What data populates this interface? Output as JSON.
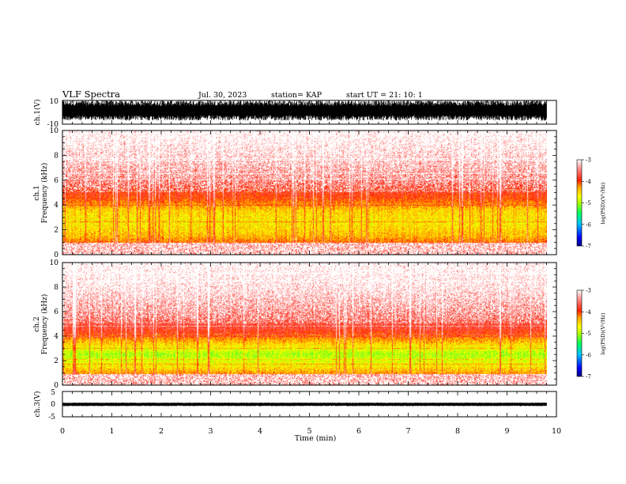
{
  "header": {
    "title": "VLF Spectra",
    "date": "Jul. 30, 2023",
    "station": "station= KAP",
    "start": "start UT = 21: 10: 1"
  },
  "x_axis": {
    "label": "Time (min)",
    "range": [
      0,
      10
    ],
    "ticks": [
      "0",
      "1",
      "2",
      "3",
      "4",
      "5",
      "6",
      "7",
      "8",
      "9",
      "10"
    ]
  },
  "colors": {
    "trace": "#000000",
    "colormap": [
      "#00007f",
      "#0000ff",
      "#00bfff",
      "#00ff60",
      "#7fff00",
      "#ffff00",
      "#ffa500",
      "#ff2000",
      "#ff8080",
      "#ffffff"
    ]
  },
  "chart_data": [
    {
      "type": "line",
      "panel": "ch1-waveform",
      "ylabel": "ch.1(V)",
      "ylim": [
        -10,
        10
      ],
      "yticks": [
        "10",
        "-10"
      ],
      "description_values": {
        "x_range_min": [
          0,
          9.8
        ],
        "amplitude_range_V": [
          -7,
          10
        ],
        "mean_V": 1
      }
    },
    {
      "type": "heatmap",
      "panel": "ch1-spectrogram",
      "ylabel": "ch.1\nFrequency (kHz)",
      "ylabel_lines": [
        "ch.1",
        "Frequency (kHz)"
      ],
      "ylim": [
        0,
        10
      ],
      "yticks": [
        "0",
        "2",
        "4",
        "6",
        "8",
        "10"
      ],
      "x_range_min": [
        0,
        9.8
      ],
      "colorbar": {
        "label": "log(PSD)(V²/Hz)",
        "ticks": [
          "-3",
          "-4",
          "-5",
          "-6",
          "-7"
        ],
        "range": [
          -7,
          -3
        ]
      },
      "band_profile_kHz": [
        {
          "freq": 0.5,
          "logpsd": -3.9
        },
        {
          "freq": 1.5,
          "logpsd": -4.4
        },
        {
          "freq": 2.5,
          "logpsd": -4.6
        },
        {
          "freq": 3.5,
          "logpsd": -4.5
        },
        {
          "freq": 4.5,
          "logpsd": -4.0
        },
        {
          "freq": 6.0,
          "logpsd": -3.6
        },
        {
          "freq": 8.0,
          "logpsd": -3.3
        },
        {
          "freq": 10.0,
          "logpsd": -3.1
        }
      ]
    },
    {
      "type": "heatmap",
      "panel": "ch2-spectrogram",
      "ylabel": "ch.2\nFrequency (kHz)",
      "ylabel_lines": [
        "ch.2",
        "Frequency (kHz)"
      ],
      "ylim": [
        0,
        10
      ],
      "yticks": [
        "0",
        "2",
        "4",
        "6",
        "8",
        "10"
      ],
      "x_range_min": [
        0,
        9.8
      ],
      "colorbar": {
        "label": "log(PSD)(V²/Hz)",
        "ticks": [
          "-3",
          "-4",
          "-5",
          "-6",
          "-7"
        ],
        "range": [
          -7,
          -3
        ]
      },
      "band_profile_kHz": [
        {
          "freq": 0.5,
          "logpsd": -4.0
        },
        {
          "freq": 1.5,
          "logpsd": -4.6
        },
        {
          "freq": 2.5,
          "logpsd": -5.0
        },
        {
          "freq": 3.5,
          "logpsd": -4.4
        },
        {
          "freq": 4.5,
          "logpsd": -3.8
        },
        {
          "freq": 6.0,
          "logpsd": -3.5
        },
        {
          "freq": 8.0,
          "logpsd": -3.2
        },
        {
          "freq": 10.0,
          "logpsd": -3.1
        }
      ]
    },
    {
      "type": "line",
      "panel": "ch3-waveform",
      "ylabel": "ch.3(V)",
      "ylim": [
        -5,
        5
      ],
      "yticks": [
        "5",
        "0",
        "-5"
      ],
      "description_values": {
        "x_range_min": [
          0,
          9.8
        ],
        "amplitude_range_V": [
          -0.8,
          0.6
        ],
        "mean_V": -0.1
      }
    }
  ]
}
